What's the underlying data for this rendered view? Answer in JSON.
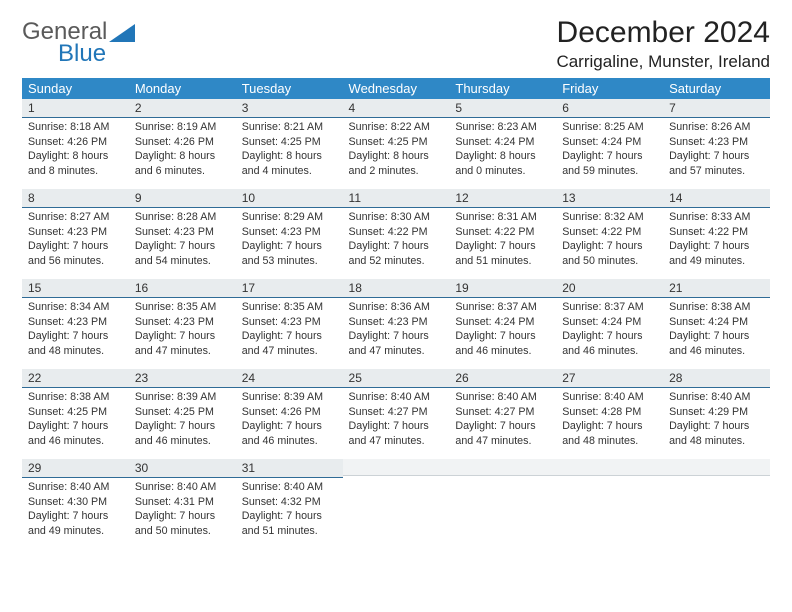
{
  "logo": {
    "line1": "General",
    "line2": "Blue"
  },
  "title": "December 2024",
  "location": "Carrigaline, Munster, Ireland",
  "colors": {
    "header_bg": "#2f88c6",
    "daybar_bg": "#e8ecee",
    "daybar_border": "#2f6b96",
    "blank_bg": "#f1f3f4",
    "logo_gray": "#5a5a5a",
    "logo_blue": "#2176b8"
  },
  "weekdays": [
    "Sunday",
    "Monday",
    "Tuesday",
    "Wednesday",
    "Thursday",
    "Friday",
    "Saturday"
  ],
  "weeks": [
    [
      {
        "n": "1",
        "sr": "8:18 AM",
        "ss": "4:26 PM",
        "dl": "8 hours and 8 minutes."
      },
      {
        "n": "2",
        "sr": "8:19 AM",
        "ss": "4:26 PM",
        "dl": "8 hours and 6 minutes."
      },
      {
        "n": "3",
        "sr": "8:21 AM",
        "ss": "4:25 PM",
        "dl": "8 hours and 4 minutes."
      },
      {
        "n": "4",
        "sr": "8:22 AM",
        "ss": "4:25 PM",
        "dl": "8 hours and 2 minutes."
      },
      {
        "n": "5",
        "sr": "8:23 AM",
        "ss": "4:24 PM",
        "dl": "8 hours and 0 minutes."
      },
      {
        "n": "6",
        "sr": "8:25 AM",
        "ss": "4:24 PM",
        "dl": "7 hours and 59 minutes."
      },
      {
        "n": "7",
        "sr": "8:26 AM",
        "ss": "4:23 PM",
        "dl": "7 hours and 57 minutes."
      }
    ],
    [
      {
        "n": "8",
        "sr": "8:27 AM",
        "ss": "4:23 PM",
        "dl": "7 hours and 56 minutes."
      },
      {
        "n": "9",
        "sr": "8:28 AM",
        "ss": "4:23 PM",
        "dl": "7 hours and 54 minutes."
      },
      {
        "n": "10",
        "sr": "8:29 AM",
        "ss": "4:23 PM",
        "dl": "7 hours and 53 minutes."
      },
      {
        "n": "11",
        "sr": "8:30 AM",
        "ss": "4:22 PM",
        "dl": "7 hours and 52 minutes."
      },
      {
        "n": "12",
        "sr": "8:31 AM",
        "ss": "4:22 PM",
        "dl": "7 hours and 51 minutes."
      },
      {
        "n": "13",
        "sr": "8:32 AM",
        "ss": "4:22 PM",
        "dl": "7 hours and 50 minutes."
      },
      {
        "n": "14",
        "sr": "8:33 AM",
        "ss": "4:22 PM",
        "dl": "7 hours and 49 minutes."
      }
    ],
    [
      {
        "n": "15",
        "sr": "8:34 AM",
        "ss": "4:23 PM",
        "dl": "7 hours and 48 minutes."
      },
      {
        "n": "16",
        "sr": "8:35 AM",
        "ss": "4:23 PM",
        "dl": "7 hours and 47 minutes."
      },
      {
        "n": "17",
        "sr": "8:35 AM",
        "ss": "4:23 PM",
        "dl": "7 hours and 47 minutes."
      },
      {
        "n": "18",
        "sr": "8:36 AM",
        "ss": "4:23 PM",
        "dl": "7 hours and 47 minutes."
      },
      {
        "n": "19",
        "sr": "8:37 AM",
        "ss": "4:24 PM",
        "dl": "7 hours and 46 minutes."
      },
      {
        "n": "20",
        "sr": "8:37 AM",
        "ss": "4:24 PM",
        "dl": "7 hours and 46 minutes."
      },
      {
        "n": "21",
        "sr": "8:38 AM",
        "ss": "4:24 PM",
        "dl": "7 hours and 46 minutes."
      }
    ],
    [
      {
        "n": "22",
        "sr": "8:38 AM",
        "ss": "4:25 PM",
        "dl": "7 hours and 46 minutes."
      },
      {
        "n": "23",
        "sr": "8:39 AM",
        "ss": "4:25 PM",
        "dl": "7 hours and 46 minutes."
      },
      {
        "n": "24",
        "sr": "8:39 AM",
        "ss": "4:26 PM",
        "dl": "7 hours and 46 minutes."
      },
      {
        "n": "25",
        "sr": "8:40 AM",
        "ss": "4:27 PM",
        "dl": "7 hours and 47 minutes."
      },
      {
        "n": "26",
        "sr": "8:40 AM",
        "ss": "4:27 PM",
        "dl": "7 hours and 47 minutes."
      },
      {
        "n": "27",
        "sr": "8:40 AM",
        "ss": "4:28 PM",
        "dl": "7 hours and 48 minutes."
      },
      {
        "n": "28",
        "sr": "8:40 AM",
        "ss": "4:29 PM",
        "dl": "7 hours and 48 minutes."
      }
    ],
    [
      {
        "n": "29",
        "sr": "8:40 AM",
        "ss": "4:30 PM",
        "dl": "7 hours and 49 minutes."
      },
      {
        "n": "30",
        "sr": "8:40 AM",
        "ss": "4:31 PM",
        "dl": "7 hours and 50 minutes."
      },
      {
        "n": "31",
        "sr": "8:40 AM",
        "ss": "4:32 PM",
        "dl": "7 hours and 51 minutes."
      },
      null,
      null,
      null,
      null
    ]
  ],
  "labels": {
    "sunrise": "Sunrise: ",
    "sunset": "Sunset: ",
    "daylight": "Daylight: "
  }
}
